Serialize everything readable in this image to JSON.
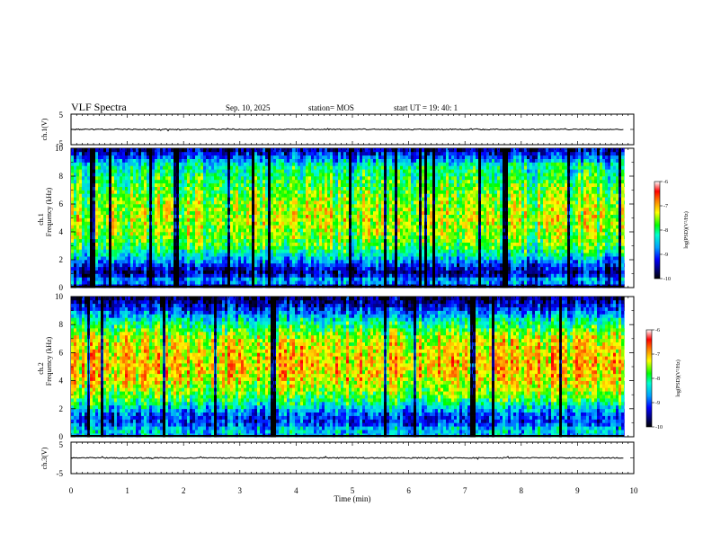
{
  "header": {
    "title": "VLF Spectra",
    "date": "Sep. 10, 2025",
    "station": "station= MOS",
    "start": "start  UT =   19: 40: 1"
  },
  "chart_data": [
    {
      "type": "line",
      "name": "ch1-waveform",
      "ylabel": "ch.1(V)",
      "ylim": [
        -5,
        5
      ],
      "ytick_labels": [
        "5",
        "-5"
      ],
      "baseline": 0
    },
    {
      "type": "heatmap",
      "name": "ch1-spectrogram",
      "ylabel_line1": "ch.1",
      "ylabel_line2": "Frequency (kHz)",
      "ylim": [
        0,
        10
      ],
      "yticks": [
        "0",
        "2",
        "4",
        "6",
        "8",
        "10"
      ],
      "colorbar": {
        "label": "log(PSD)(V²/Hz)",
        "range": [
          -10,
          -6
        ],
        "ticks": [
          "-6",
          "-7",
          "-8",
          "-9",
          "-10"
        ]
      },
      "band_profile": [
        {
          "f": 0.0,
          "level": -9.8
        },
        {
          "f": 0.5,
          "level": -8.5
        },
        {
          "f": 1.0,
          "level": -9.6
        },
        {
          "f": 1.5,
          "level": -9.3
        },
        {
          "f": 2.0,
          "level": -8.6
        },
        {
          "f": 2.5,
          "level": -8.2
        },
        {
          "f": 3.0,
          "level": -7.8
        },
        {
          "f": 4.0,
          "level": -7.5
        },
        {
          "f": 5.0,
          "level": -7.4
        },
        {
          "f": 6.0,
          "level": -7.5
        },
        {
          "f": 7.0,
          "level": -7.7
        },
        {
          "f": 8.0,
          "level": -8.0
        },
        {
          "f": 8.8,
          "level": -8.2
        },
        {
          "f": 9.4,
          "level": -9.0
        },
        {
          "f": 10.0,
          "level": -9.7
        }
      ]
    },
    {
      "type": "heatmap",
      "name": "ch2-spectrogram",
      "ylabel_line1": "ch.2",
      "ylabel_line2": "Frequency (kHz)",
      "ylim": [
        0,
        10
      ],
      "yticks": [
        "0",
        "2",
        "4",
        "6",
        "8",
        "10"
      ],
      "colorbar": {
        "label": "log(PSD)(V²/Hz)",
        "range": [
          -10,
          -6
        ],
        "ticks": [
          "-6",
          "-7",
          "-8",
          "-9",
          "-10"
        ]
      },
      "band_profile": [
        {
          "f": 0.0,
          "level": -8.6
        },
        {
          "f": 0.5,
          "level": -8.4
        },
        {
          "f": 1.0,
          "level": -9.1
        },
        {
          "f": 1.5,
          "level": -9.0
        },
        {
          "f": 2.0,
          "level": -8.5
        },
        {
          "f": 2.5,
          "level": -8.0
        },
        {
          "f": 3.0,
          "level": -7.6
        },
        {
          "f": 4.0,
          "level": -7.2
        },
        {
          "f": 5.0,
          "level": -7.0
        },
        {
          "f": 6.0,
          "level": -7.1
        },
        {
          "f": 7.0,
          "level": -7.3
        },
        {
          "f": 7.8,
          "level": -7.8
        },
        {
          "f": 8.5,
          "level": -8.4
        },
        {
          "f": 9.2,
          "level": -9.2
        },
        {
          "f": 10.0,
          "level": -9.8
        }
      ]
    },
    {
      "type": "line",
      "name": "ch3-waveform",
      "ylabel": "ch.3(V)",
      "ylim": [
        -5,
        5
      ],
      "ytick_labels": [
        "5",
        "-5"
      ],
      "baseline": 0
    }
  ],
  "x_axis": {
    "label": "Time (min)",
    "range": [
      0,
      10
    ],
    "data_end": 9.83,
    "ticks": [
      "0",
      "1",
      "2",
      "3",
      "4",
      "5",
      "6",
      "7",
      "8",
      "9",
      "10"
    ]
  }
}
